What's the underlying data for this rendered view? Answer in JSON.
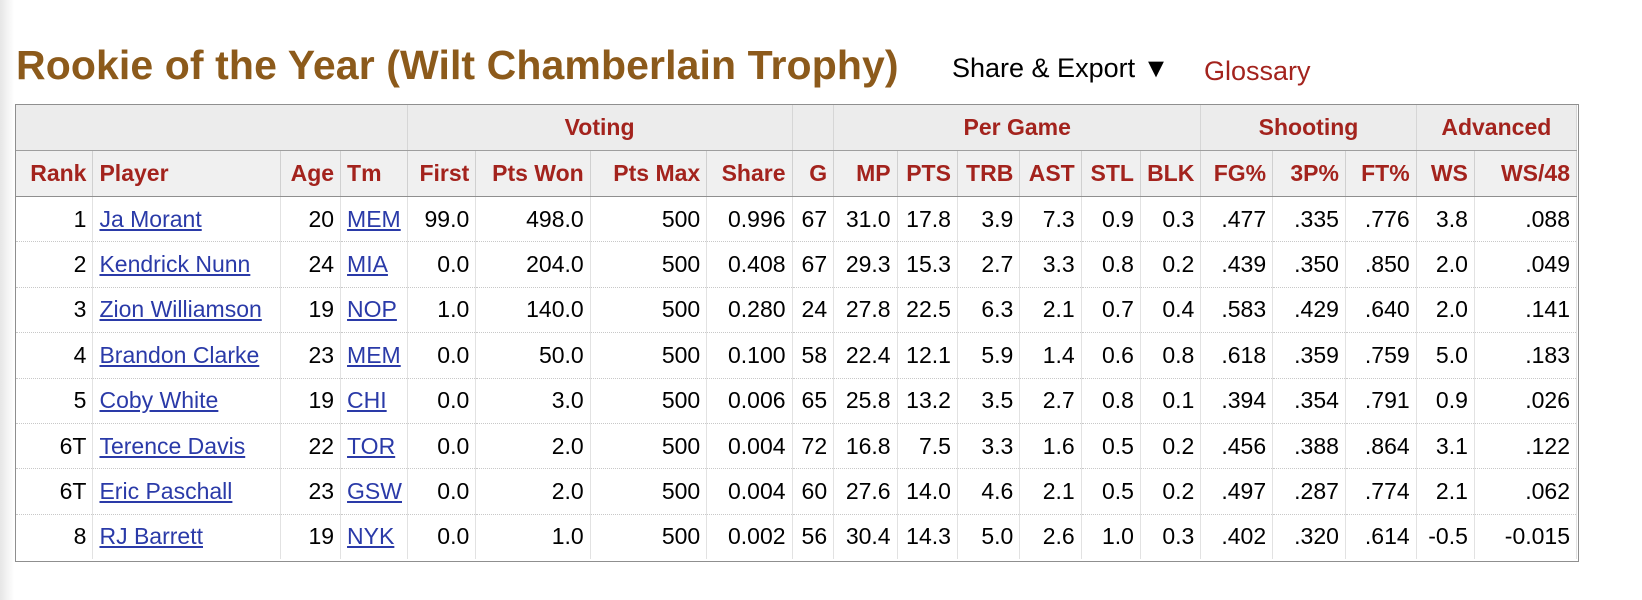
{
  "header": {
    "title": "Rookie of the Year (Wilt Chamberlain Trophy)",
    "share_export": "Share & Export ▼",
    "glossary": "Glossary"
  },
  "table": {
    "groups": [
      {
        "label": "",
        "span": 4
      },
      {
        "label": "Voting",
        "span": 4
      },
      {
        "label": "",
        "span": 1
      },
      {
        "label": "Per Game",
        "span": 6
      },
      {
        "label": "Shooting",
        "span": 3
      },
      {
        "label": "Advanced",
        "span": 2
      }
    ],
    "columns": [
      "Rank",
      "Player",
      "Age",
      "Tm",
      "First",
      "Pts Won",
      "Pts Max",
      "Share",
      "G",
      "MP",
      "PTS",
      "TRB",
      "AST",
      "STL",
      "BLK",
      "FG%",
      "3P%",
      "FT%",
      "WS",
      "WS/48"
    ],
    "rows": [
      [
        "1",
        "Ja Morant",
        "20",
        "MEM",
        "99.0",
        "498.0",
        "500",
        "0.996",
        "67",
        "31.0",
        "17.8",
        "3.9",
        "7.3",
        "0.9",
        "0.3",
        ".477",
        ".335",
        ".776",
        "3.8",
        ".088"
      ],
      [
        "2",
        "Kendrick Nunn",
        "24",
        "MIA",
        "0.0",
        "204.0",
        "500",
        "0.408",
        "67",
        "29.3",
        "15.3",
        "2.7",
        "3.3",
        "0.8",
        "0.2",
        ".439",
        ".350",
        ".850",
        "2.0",
        ".049"
      ],
      [
        "3",
        "Zion Williamson",
        "19",
        "NOP",
        "1.0",
        "140.0",
        "500",
        "0.280",
        "24",
        "27.8",
        "22.5",
        "6.3",
        "2.1",
        "0.7",
        "0.4",
        ".583",
        ".429",
        ".640",
        "2.0",
        ".141"
      ],
      [
        "4",
        "Brandon Clarke",
        "23",
        "MEM",
        "0.0",
        "50.0",
        "500",
        "0.100",
        "58",
        "22.4",
        "12.1",
        "5.9",
        "1.4",
        "0.6",
        "0.8",
        ".618",
        ".359",
        ".759",
        "5.0",
        ".183"
      ],
      [
        "5",
        "Coby White",
        "19",
        "CHI",
        "0.0",
        "3.0",
        "500",
        "0.006",
        "65",
        "25.8",
        "13.2",
        "3.5",
        "2.7",
        "0.8",
        "0.1",
        ".394",
        ".354",
        ".791",
        "0.9",
        ".026"
      ],
      [
        "6T",
        "Terence Davis",
        "22",
        "TOR",
        "0.0",
        "2.0",
        "500",
        "0.004",
        "72",
        "16.8",
        "7.5",
        "3.3",
        "1.6",
        "0.5",
        "0.2",
        ".456",
        ".388",
        ".864",
        "3.1",
        ".122"
      ],
      [
        "6T",
        "Eric Paschall",
        "23",
        "GSW",
        "0.0",
        "2.0",
        "500",
        "0.004",
        "60",
        "27.6",
        "14.0",
        "4.6",
        "2.1",
        "0.5",
        "0.2",
        ".497",
        ".287",
        ".774",
        "2.1",
        ".062"
      ],
      [
        "8",
        "RJ Barrett",
        "19",
        "NYK",
        "0.0",
        "1.0",
        "500",
        "0.002",
        "56",
        "30.4",
        "14.3",
        "5.0",
        "2.6",
        "1.0",
        "0.3",
        ".402",
        ".320",
        ".614",
        "-0.5",
        "-0.015"
      ]
    ]
  },
  "colors": {
    "title": "#8c5a1b",
    "header_text": "#a3231d",
    "link": "#2a3aa8"
  }
}
